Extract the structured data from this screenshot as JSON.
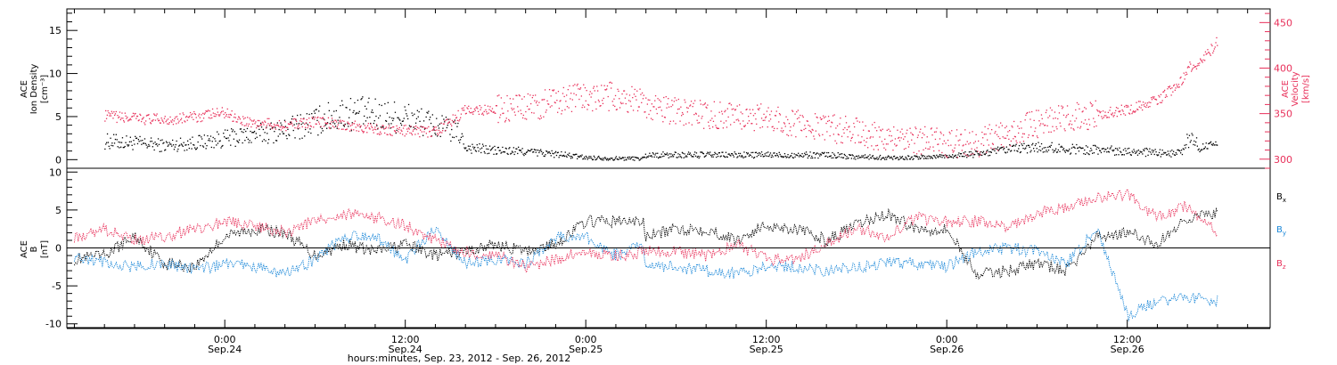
{
  "colors": {
    "black": "#000000",
    "red": "#e8305a",
    "blue": "#1a87d8"
  },
  "chart_data": [
    {
      "type": "scatter",
      "panel": "top",
      "ylabel_lines": [
        "ACE",
        "Ion Density",
        "[cm⁻³]"
      ],
      "ylim": [
        -1,
        17.5
      ],
      "yticks": [
        0,
        5,
        10,
        15
      ],
      "ylabel_right_lines": [
        "ACE",
        "Velocity",
        "[km/s]"
      ],
      "ylim_right": [
        290,
        465
      ],
      "yticks_right": [
        300,
        350,
        400,
        450
      ],
      "series": [
        {
          "axis": "left",
          "color": "#000000",
          "x": [
            -8,
            -6,
            -4,
            -2,
            0,
            2,
            4,
            6,
            8,
            10,
            12,
            14,
            15.5,
            16,
            18,
            20,
            22,
            24,
            26,
            27.8,
            28,
            30,
            32,
            34,
            36,
            38,
            40,
            42,
            44,
            46,
            48,
            50,
            52,
            54,
            56,
            58,
            60,
            62,
            63.5,
            64,
            65,
            66
          ],
          "values": [
            2.2,
            2.0,
            1.7,
            2.0,
            2.5,
            3.0,
            3.5,
            4.5,
            5.5,
            5.2,
            5.0,
            4.0,
            3.2,
            1.5,
            1.1,
            1.0,
            0.7,
            0.3,
            0.2,
            0.2,
            0.6,
            0.6,
            0.6,
            0.6,
            0.6,
            0.6,
            0.6,
            0.4,
            0.3,
            0.3,
            0.5,
            0.7,
            1.2,
            1.5,
            1.3,
            1.2,
            1.1,
            0.8,
            0.8,
            2.5,
            1.5,
            1.6
          ]
        },
        {
          "axis": "right",
          "color": "#e8305a",
          "x": [
            -8,
            -6,
            -4,
            -2,
            0,
            1,
            2,
            4,
            6,
            8,
            10,
            12,
            14,
            15.5,
            16,
            18,
            20,
            22,
            24,
            26,
            27.8,
            28,
            30,
            32,
            34,
            36,
            38,
            40,
            42,
            44,
            46,
            48,
            50,
            52,
            54,
            56,
            58,
            60,
            62,
            63.5,
            64,
            65,
            66
          ],
          "values": [
            348,
            345,
            344,
            347,
            352,
            344,
            340,
            338,
            342,
            338,
            333,
            332,
            330,
            348,
            355,
            355,
            356,
            365,
            368,
            370,
            362,
            360,
            353,
            348,
            350,
            345,
            340,
            335,
            330,
            325,
            322,
            318,
            318,
            330,
            340,
            345,
            350,
            355,
            365,
            385,
            400,
            410,
            430
          ]
        }
      ]
    },
    {
      "type": "line",
      "panel": "bottom",
      "ylabel_lines": [
        "ACE",
        "B",
        "[nT]"
      ],
      "ylim": [
        -10.5,
        10.5
      ],
      "yticks": [
        -10,
        -5,
        0,
        5,
        10
      ],
      "xlabel": "hours:minutes, Sep. 23, 2012 - Sep. 26, 2012",
      "xlim": [
        -10.5,
        69.5
      ],
      "xticks": [
        {
          "x": 0,
          "time": "0:00",
          "date": "Sep.24"
        },
        {
          "x": 12,
          "time": "12:00",
          "date": "Sep.24"
        },
        {
          "x": 24,
          "time": "0:00",
          "date": "Sep.25"
        },
        {
          "x": 36,
          "time": "12:00",
          "date": "Sep.25"
        },
        {
          "x": 48,
          "time": "0:00",
          "date": "Sep.26"
        },
        {
          "x": 60,
          "time": "12:00",
          "date": "Sep.26"
        }
      ],
      "legend_position": "right",
      "series": [
        {
          "name": "Bx",
          "label_main": "B",
          "label_sub": "x",
          "color": "#000000",
          "x": [
            -10,
            -8,
            -6,
            -4,
            -2,
            0,
            2,
            4,
            6,
            8,
            10,
            12,
            14,
            16,
            18,
            20,
            22,
            24,
            26,
            27.8,
            28,
            30,
            32,
            34,
            36,
            38,
            40,
            42,
            44,
            46,
            48,
            50,
            52,
            54,
            56,
            58,
            60,
            62,
            64,
            66
          ],
          "values": [
            -1.5,
            -1.0,
            1.5,
            -2.0,
            -2.5,
            1.5,
            2.5,
            2.0,
            -1.0,
            0.5,
            -0.5,
            0.5,
            -1.0,
            -0.5,
            0.5,
            -0.5,
            0.5,
            3.5,
            3.5,
            3.5,
            1.5,
            2.5,
            2.5,
            1.0,
            3.0,
            2.5,
            1.0,
            3.0,
            4.5,
            2.5,
            2.5,
            -3.5,
            -3.0,
            -2.0,
            -3.0,
            1.5,
            2.0,
            0.5,
            4.0,
            4.5
          ]
        },
        {
          "name": "By",
          "label_main": "B",
          "label_sub": "y",
          "color": "#1a87d8",
          "x": [
            -10,
            -8,
            -6,
            -4,
            -2,
            0,
            2,
            4,
            6,
            8,
            10,
            12,
            14,
            16,
            18,
            20,
            22,
            24,
            26,
            27.8,
            28,
            30,
            32,
            34,
            36,
            38,
            40,
            42,
            44,
            46,
            48,
            50,
            52,
            54,
            56,
            58,
            60,
            62,
            64,
            66
          ],
          "values": [
            -1.0,
            -2.0,
            -2.5,
            -2.0,
            -3.0,
            -2.0,
            -2.5,
            -3.5,
            -1.5,
            1.5,
            1.5,
            -1.5,
            2.5,
            -2.0,
            -1.5,
            -2.0,
            1.5,
            1.5,
            -1.0,
            0.5,
            -2.5,
            -2.5,
            -3.0,
            -3.5,
            -2.5,
            -2.5,
            -3.0,
            -2.5,
            -2.0,
            -2.0,
            -2.5,
            -0.5,
            0.0,
            -0.5,
            -2.0,
            2.5,
            -9.0,
            -7.0,
            -6.5,
            -7.0
          ]
        },
        {
          "name": "Bz",
          "label_main": "B",
          "label_sub": "z",
          "color": "#e8305a",
          "x": [
            -10,
            -8,
            -6,
            -4,
            -2,
            0,
            2,
            4,
            6,
            8,
            10,
            12,
            14,
            16,
            18,
            20,
            22,
            24,
            26,
            27.8,
            28,
            30,
            32,
            34,
            36,
            38,
            40,
            42,
            44,
            46,
            48,
            50,
            52,
            54,
            56,
            58,
            60,
            62,
            64,
            66
          ],
          "values": [
            1.5,
            2.5,
            1.0,
            1.5,
            2.5,
            3.5,
            3.0,
            2.0,
            3.5,
            4.5,
            4.0,
            3.0,
            1.0,
            -0.5,
            -1.0,
            -2.5,
            -1.5,
            -0.5,
            -1.0,
            -0.5,
            -0.5,
            -0.5,
            -1.0,
            0.5,
            -1.5,
            -1.5,
            0.5,
            2.5,
            1.5,
            4.0,
            3.5,
            3.5,
            2.5,
            4.5,
            5.5,
            6.5,
            7.0,
            4.0,
            5.5,
            2.0
          ]
        }
      ]
    }
  ]
}
